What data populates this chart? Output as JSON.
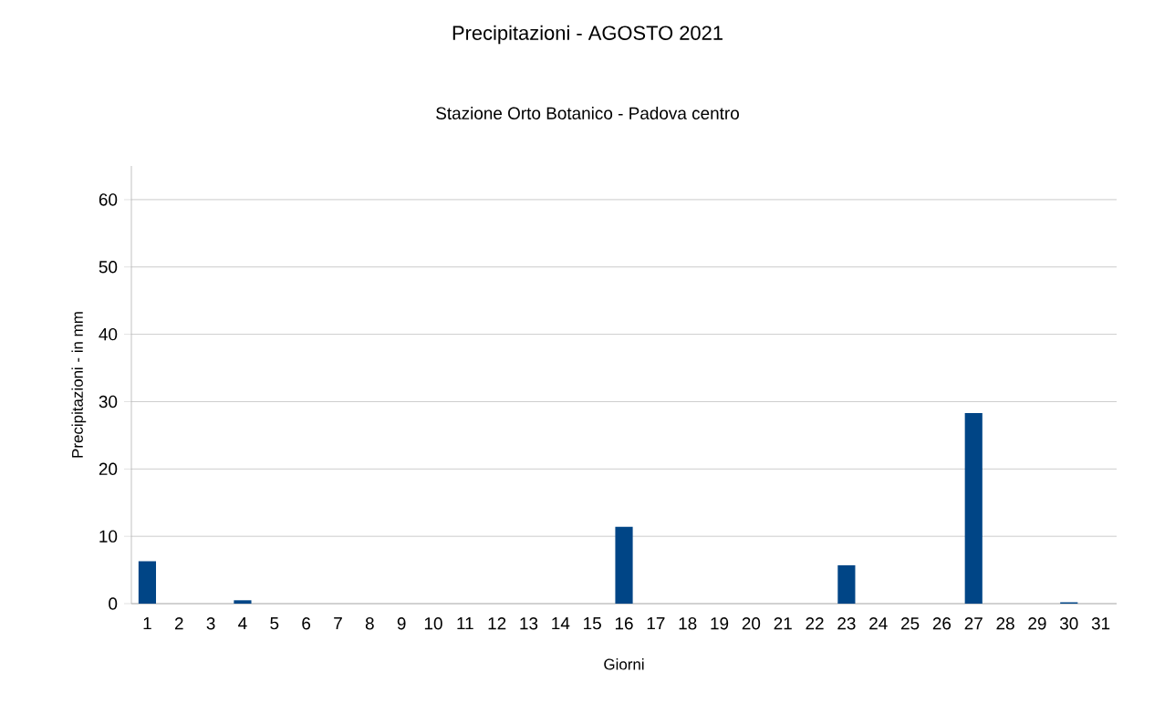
{
  "chart_data": {
    "type": "bar",
    "title": "Precipitazioni - AGOSTO 2021",
    "subtitle": "Stazione Orto Botanico - Padova centro",
    "xlabel": "Giorni",
    "ylabel": "Precipitazioni - in mm",
    "categories": [
      "1",
      "2",
      "3",
      "4",
      "5",
      "6",
      "7",
      "8",
      "9",
      "10",
      "11",
      "12",
      "13",
      "14",
      "15",
      "16",
      "17",
      "18",
      "19",
      "20",
      "21",
      "22",
      "23",
      "24",
      "25",
      "26",
      "27",
      "28",
      "29",
      "30",
      "31"
    ],
    "values": [
      6.3,
      0,
      0,
      0.5,
      0,
      0,
      0,
      0,
      0,
      0,
      0,
      0,
      0,
      0,
      0,
      11.4,
      0,
      0,
      0,
      0,
      0,
      0,
      5.7,
      0,
      0,
      0,
      28.3,
      0,
      0,
      0.2,
      0
    ],
    "color": "#004586",
    "ylim": [
      0,
      65
    ],
    "yticks": [
      0,
      10,
      20,
      30,
      40,
      50,
      60
    ],
    "grid": "y"
  }
}
